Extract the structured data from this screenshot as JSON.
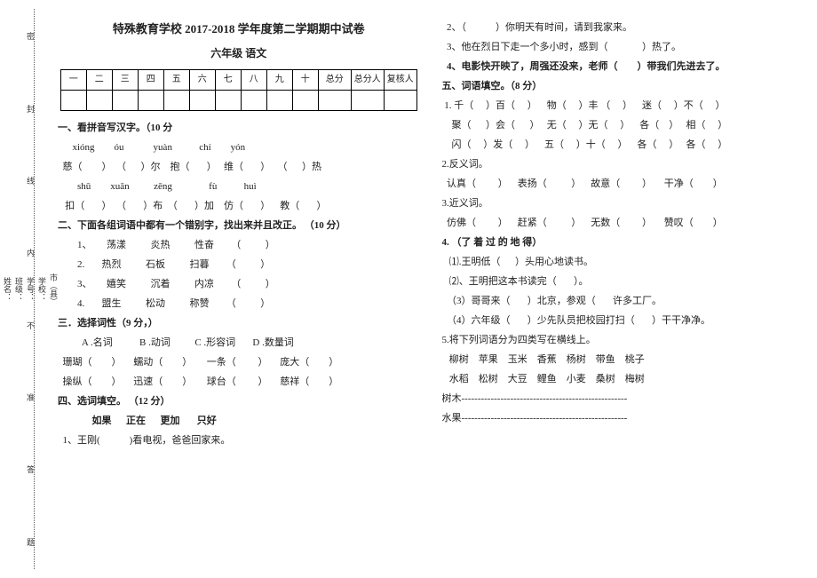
{
  "title": "特殊教育学校 2017-2018 学年度第二学期期中试卷",
  "subtitle": "六年级    语文",
  "score_headers": [
    "一",
    "二",
    "三",
    "四",
    "五",
    "六",
    "七",
    "八",
    "九",
    "十",
    "总分",
    "总分人",
    "复核人"
  ],
  "s1": {
    "h": "一、看拼音写汉字。（10 分",
    "r1": "      xióng        óu            yuàn           chí        yón",
    "r2": "  慈（        ）  （      ）尔    抱（       ）   维（       ）   （      ）热",
    "r3": "        shū        xuān          zēng               fù           huì",
    "r4": "   扣（       ）  （       ）布  （       ）加    仿（       ）    教（       ）"
  },
  "s2": {
    "h": "二、下面各组词语中都有一个错别字，找出来并且改正。 （10 分）",
    "l1": "1、      荡漾          炎热          性奋       （          ）",
    "l2": "2.       热烈          石板          扫暮       （          ）",
    "l3": "3、      嬉笑          沉着          内凉       （          ）",
    "l4": "4.       盟生          松动          称赞       （          ）"
  },
  "s3": {
    "h": "三．选择词性（9 分，）",
    "opts": "          A .名词           B .动词          C .形容词       D .数量词",
    "l1": "  珊瑚（        ）     蠕动（        ）      一条（         ）     庞大（        ）",
    "l2": "  操纵（        ）     迅速（        ）      球台（         ）     慈祥（        ）"
  },
  "s4": {
    "h": "四、选词填空。 （12 分）",
    "words": "              如果      正在      更加       只好",
    "l1": "  1、王刚(            )看电视，爸爸回家来。"
  },
  "s4b": {
    "l2": "  2、（            ）你明天有时间，请到我家来。",
    "l3": "  3、他在烈日下走一个多小时，感到（              ）热了。",
    "l4": "  4、电影快开映了，周强还没来，老师（        ）带我们先进去了。"
  },
  "s5": {
    "h": "五、词语填空。（8 分）",
    "l1": " 1. 千（     ）百（     ）    物（     ）丰 （     ）    迷（     ）不（     ）",
    "l2": "    聚（      ）会（      ）   无（     ）无（     ）    各（    ）   相（     ）",
    "l3": "    闪（     ）发（     ）    五（     ）十（     ）    各（     ）   各（     ）",
    "h2": " 2.反义词。",
    "l4": "  认真（         ）    表扬（          ）    故意（         ）     干净（        ）",
    "h3": " 3.近义词。",
    "l5": "  仿佛（         ）    赶紧（          ）    无数（         ）     赞叹（        ）",
    "h4": " 4.       （了    着    过         的      地      得）",
    "l6": "   ⑴.王明低（      ）头用心地读书。",
    "l7": "   ⑵、王明把这本书读完（       ）。",
    "l8": "  （3）哥哥来（       ）北京，参观（       许多工厂。",
    "l9": "  （4）六年级（       ）少先队员把校园打扫（       ）干干净净。",
    "h5": " 5.将下列词语分为四类写在横线上。",
    "w1": "   柳树    苹果    玉米    香蕉    杨树    带鱼    桃子",
    "w2": "   水稻    松树    大豆    鲤鱼    小麦    桑树    梅树",
    "cat1": "   树木",
    "cat2": "   水果"
  }
}
